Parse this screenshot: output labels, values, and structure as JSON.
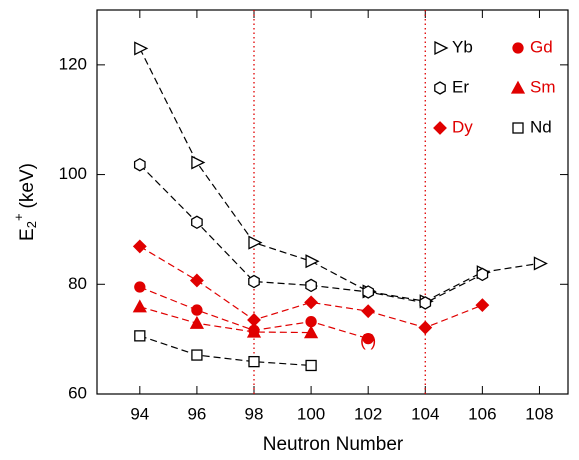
{
  "chart_data": {
    "type": "line",
    "xlabel": "Neutron Number",
    "ylabel": {
      "base": "E",
      "sub": "2",
      "sup": "+",
      "unit": "(keV)"
    },
    "xlim": [
      92.5,
      109
    ],
    "ylim": [
      60,
      130
    ],
    "xticks": [
      94,
      96,
      98,
      100,
      102,
      104,
      106,
      108
    ],
    "yticks": [
      60,
      80,
      100,
      120
    ],
    "vlines": [
      98,
      104
    ],
    "vline_color": "#e00000",
    "series": [
      {
        "name": "Yb",
        "color": "#000000",
        "marker": "triangle-right",
        "filled": false,
        "x": [
          94,
          96,
          98,
          100,
          102,
          104,
          106,
          108
        ],
        "values": [
          123.0,
          102.2,
          87.6,
          84.2,
          78.7,
          76.9,
          82.2,
          83.8
        ]
      },
      {
        "name": "Gd",
        "color": "#e00000",
        "marker": "circle",
        "filled": true,
        "x": [
          94,
          96,
          98,
          100,
          102
        ],
        "values": [
          79.5,
          75.3,
          71.6,
          73.2,
          70.1
        ]
      },
      {
        "name": "Er",
        "color": "#000000",
        "marker": "hexagon",
        "filled": false,
        "x": [
          94,
          96,
          98,
          100,
          102,
          104,
          106
        ],
        "values": [
          101.8,
          91.3,
          80.5,
          79.8,
          78.6,
          76.6,
          81.8
        ]
      },
      {
        "name": "Sm",
        "color": "#e00000",
        "marker": "triangle",
        "filled": true,
        "x": [
          94,
          96,
          98,
          100
        ],
        "values": [
          75.9,
          72.9,
          71.3,
          71.2
        ]
      },
      {
        "name": "Dy",
        "color": "#e00000",
        "marker": "diamond",
        "filled": true,
        "x": [
          94,
          96,
          98,
          100,
          102,
          104,
          106
        ],
        "values": [
          86.9,
          80.7,
          73.5,
          76.7,
          75.1,
          72.1,
          76.2
        ]
      },
      {
        "name": "Nd",
        "color": "#000000",
        "marker": "square",
        "filled": false,
        "x": [
          94,
          96,
          98,
          100
        ],
        "values": [
          70.6,
          67.1,
          65.9,
          65.2
        ]
      }
    ],
    "annotations": [
      {
        "text": "(   )",
        "x": 102,
        "y": 69.6,
        "color": "#e00000"
      }
    ]
  }
}
